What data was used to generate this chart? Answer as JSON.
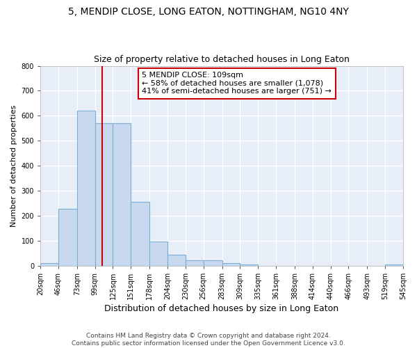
{
  "title": "5, MENDIP CLOSE, LONG EATON, NOTTINGHAM, NG10 4NY",
  "subtitle": "Size of property relative to detached houses in Long Eaton",
  "xlabel": "Distribution of detached houses by size in Long Eaton",
  "ylabel": "Number of detached properties",
  "bar_values": [
    10,
    228,
    620,
    570,
    570,
    255,
    97,
    43,
    20,
    20,
    10,
    5,
    0,
    0,
    0,
    0,
    0,
    0,
    0,
    5
  ],
  "bar_edges": [
    20,
    46,
    73,
    99,
    125,
    151,
    178,
    204,
    230,
    256,
    283,
    309,
    335,
    361,
    388,
    414,
    440,
    466,
    493,
    519,
    545
  ],
  "tick_labels": [
    "20sqm",
    "46sqm",
    "73sqm",
    "99sqm",
    "125sqm",
    "151sqm",
    "178sqm",
    "204sqm",
    "230sqm",
    "256sqm",
    "283sqm",
    "309sqm",
    "335sqm",
    "361sqm",
    "388sqm",
    "414sqm",
    "440sqm",
    "466sqm",
    "493sqm",
    "519sqm",
    "545sqm"
  ],
  "bar_color": "#c8d8ee",
  "bar_edge_color": "#7bafd4",
  "red_line_x": 109,
  "red_line_color": "#cc0000",
  "annotation_text": "5 MENDIP CLOSE: 109sqm\n← 58% of detached houses are smaller (1,078)\n41% of semi-detached houses are larger (751) →",
  "annotation_box_color": "#ffffff",
  "annotation_border_color": "#cc0000",
  "ylim": [
    0,
    800
  ],
  "yticks": [
    0,
    100,
    200,
    300,
    400,
    500,
    600,
    700,
    800
  ],
  "background_color": "#dde6f0",
  "plot_bg_color": "#e8eef7",
  "grid_color": "#ffffff",
  "footer_text": "Contains HM Land Registry data © Crown copyright and database right 2024.\nContains public sector information licensed under the Open Government Licence v3.0.",
  "title_fontsize": 10,
  "subtitle_fontsize": 9,
  "xlabel_fontsize": 9,
  "ylabel_fontsize": 8,
  "tick_fontsize": 7,
  "annotation_fontsize": 8,
  "footer_fontsize": 6.5
}
